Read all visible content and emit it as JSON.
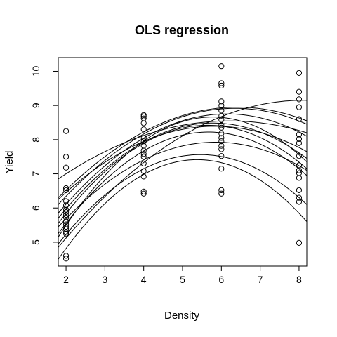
{
  "chart_data": {
    "type": "scatter",
    "title": "OLS regression",
    "xlabel": "Density",
    "ylabel": "Yield",
    "xlim": [
      1.8,
      8.2
    ],
    "ylim": [
      4.3,
      10.4
    ],
    "xticks": [
      "2",
      "3",
      "4",
      "5",
      "6",
      "7",
      "8"
    ],
    "yticks": [
      "5",
      "6",
      "7",
      "8",
      "9",
      "10"
    ],
    "grid": false,
    "legend": "none",
    "colors": {
      "ink": "#000000",
      "background": "#ffffff"
    },
    "points": [
      [
        2,
        8.25
      ],
      [
        2,
        7.5
      ],
      [
        2,
        7.18
      ],
      [
        2,
        6.58
      ],
      [
        2,
        6.52
      ],
      [
        2,
        6.2
      ],
      [
        2,
        6.08
      ],
      [
        2,
        5.95
      ],
      [
        2,
        5.88
      ],
      [
        2,
        5.8
      ],
      [
        2,
        5.72
      ],
      [
        2,
        5.6
      ],
      [
        2,
        5.52
      ],
      [
        2,
        5.45
      ],
      [
        2,
        5.38
      ],
      [
        2,
        5.3
      ],
      [
        2,
        5.25
      ],
      [
        2,
        4.6
      ],
      [
        2,
        4.52
      ],
      [
        4,
        8.72
      ],
      [
        4,
        8.68
      ],
      [
        4,
        8.62
      ],
      [
        4,
        8.48
      ],
      [
        4,
        8.3
      ],
      [
        4,
        8.05
      ],
      [
        4,
        7.95
      ],
      [
        4,
        7.82
      ],
      [
        4,
        7.68
      ],
      [
        4,
        7.58
      ],
      [
        4,
        7.5
      ],
      [
        4,
        7.3
      ],
      [
        4,
        7.08
      ],
      [
        4,
        6.92
      ],
      [
        4,
        6.48
      ],
      [
        4,
        6.42
      ],
      [
        6,
        10.15
      ],
      [
        6,
        9.65
      ],
      [
        6,
        9.58
      ],
      [
        6,
        9.12
      ],
      [
        6,
        9.0
      ],
      [
        6,
        8.85
      ],
      [
        6,
        8.7
      ],
      [
        6,
        8.58
      ],
      [
        6,
        8.42
      ],
      [
        6,
        8.35
      ],
      [
        6,
        8.18
      ],
      [
        6,
        8.05
      ],
      [
        6,
        7.95
      ],
      [
        6,
        7.82
      ],
      [
        6,
        7.72
      ],
      [
        6,
        7.52
      ],
      [
        6,
        7.15
      ],
      [
        6,
        6.52
      ],
      [
        6,
        6.42
      ],
      [
        8,
        9.95
      ],
      [
        8,
        9.4
      ],
      [
        8,
        9.18
      ],
      [
        8,
        8.95
      ],
      [
        8,
        8.6
      ],
      [
        8,
        8.15
      ],
      [
        8,
        8.02
      ],
      [
        8,
        7.9
      ],
      [
        8,
        7.52
      ],
      [
        8,
        7.25
      ],
      [
        8,
        7.1
      ],
      [
        8,
        7.02
      ],
      [
        8,
        6.88
      ],
      [
        8,
        6.52
      ],
      [
        8,
        6.3
      ],
      [
        8,
        6.18
      ],
      [
        8,
        4.98
      ]
    ],
    "curves": [
      {
        "points": [
          [
            1.8,
            4.5
          ],
          [
            4.67,
            7.3
          ],
          [
            8.2,
            5.6
          ]
        ]
      },
      {
        "points": [
          [
            1.8,
            4.95
          ],
          [
            5.0,
            7.52
          ],
          [
            8.2,
            6.1
          ]
        ]
      },
      {
        "points": [
          [
            1.8,
            5.45
          ],
          [
            5.67,
            7.92
          ],
          [
            8.2,
            7.1
          ]
        ]
      },
      {
        "points": [
          [
            1.8,
            5.25
          ],
          [
            5.33,
            8.2
          ],
          [
            8.2,
            6.95
          ]
        ]
      },
      {
        "points": [
          [
            1.8,
            5.55
          ],
          [
            5.67,
            8.42
          ],
          [
            8.2,
            7.15
          ]
        ]
      },
      {
        "points": [
          [
            1.8,
            5.7
          ],
          [
            5.33,
            8.45
          ],
          [
            8.2,
            7.45
          ]
        ]
      },
      {
        "points": [
          [
            1.8,
            5.15
          ],
          [
            6.0,
            8.65
          ],
          [
            8.2,
            7.35
          ]
        ]
      },
      {
        "points": [
          [
            1.8,
            5.85
          ],
          [
            6.0,
            8.75
          ],
          [
            8.2,
            8.1
          ]
        ]
      },
      {
        "points": [
          [
            1.8,
            6.1
          ],
          [
            6.0,
            8.9
          ],
          [
            8.2,
            8.45
          ]
        ]
      },
      {
        "points": [
          [
            1.8,
            6.3
          ],
          [
            6.33,
            8.95
          ],
          [
            8.2,
            8.55
          ]
        ]
      },
      {
        "points": [
          [
            1.8,
            6.25
          ],
          [
            5.0,
            8.3
          ],
          [
            8.2,
            7.65
          ]
        ]
      },
      {
        "points": [
          [
            1.8,
            4.85
          ],
          [
            8.0,
            9.15
          ],
          [
            8.2,
            9.15
          ]
        ]
      },
      {
        "points": [
          [
            1.8,
            6.85
          ],
          [
            5.0,
            8.42
          ],
          [
            8.2,
            8.2
          ]
        ]
      }
    ]
  }
}
